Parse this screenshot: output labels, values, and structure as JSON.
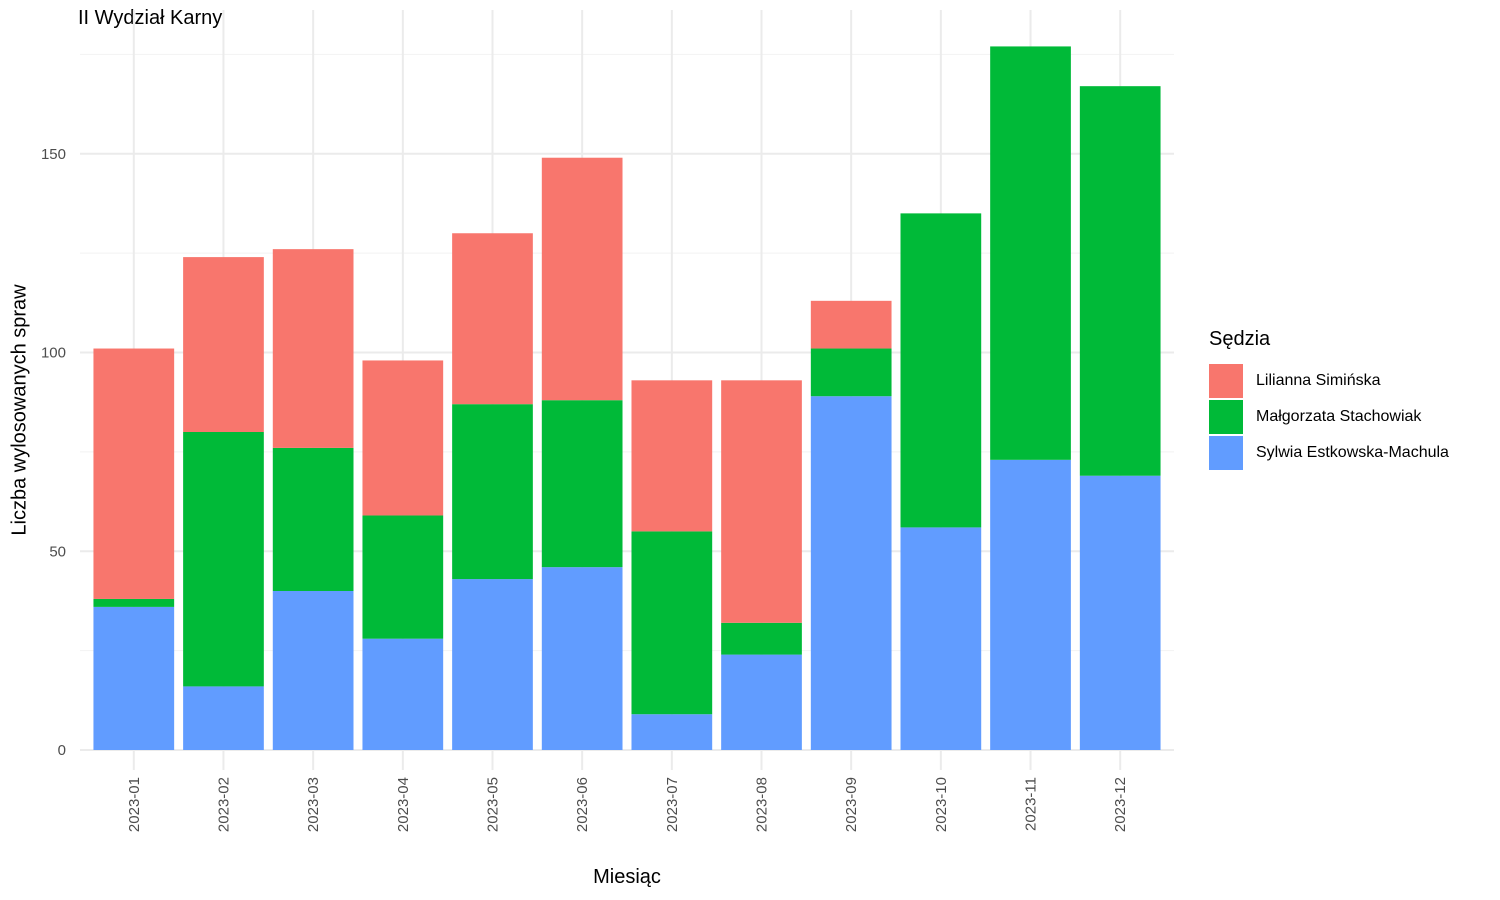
{
  "chart_data": {
    "type": "bar",
    "stacked": true,
    "title": "II Wydział Karny",
    "xlabel": "Miesiąc",
    "ylabel": "Liczba wylosowanych spraw",
    "ylim": [
      0,
      180
    ],
    "yticks": [
      0,
      50,
      100,
      150
    ],
    "grid": true,
    "legend_position": "right",
    "legend_title": "Sędzia",
    "categories": [
      "2023-01",
      "2023-02",
      "2023-03",
      "2023-04",
      "2023-05",
      "2023-06",
      "2023-07",
      "2023-08",
      "2023-09",
      "2023-10",
      "2023-11",
      "2023-12"
    ],
    "series": [
      {
        "name": "Sylwia Estkowska-Machula",
        "color": "#619CFF",
        "values": [
          36,
          16,
          40,
          28,
          43,
          46,
          9,
          24,
          89,
          56,
          73,
          69
        ]
      },
      {
        "name": "Małgorzata Stachowiak",
        "color": "#00BA38",
        "values": [
          2,
          64,
          36,
          31,
          44,
          42,
          46,
          8,
          12,
          79,
          104,
          98
        ]
      },
      {
        "name": "Lilianna Simińska",
        "color": "#F8766D",
        "values": [
          63,
          44,
          50,
          39,
          43,
          61,
          38,
          61,
          12,
          0,
          0,
          0
        ]
      }
    ],
    "legend_order": [
      "Lilianna Simińska",
      "Małgorzata Stachowiak",
      "Sylwia Estkowska-Machula"
    ]
  }
}
